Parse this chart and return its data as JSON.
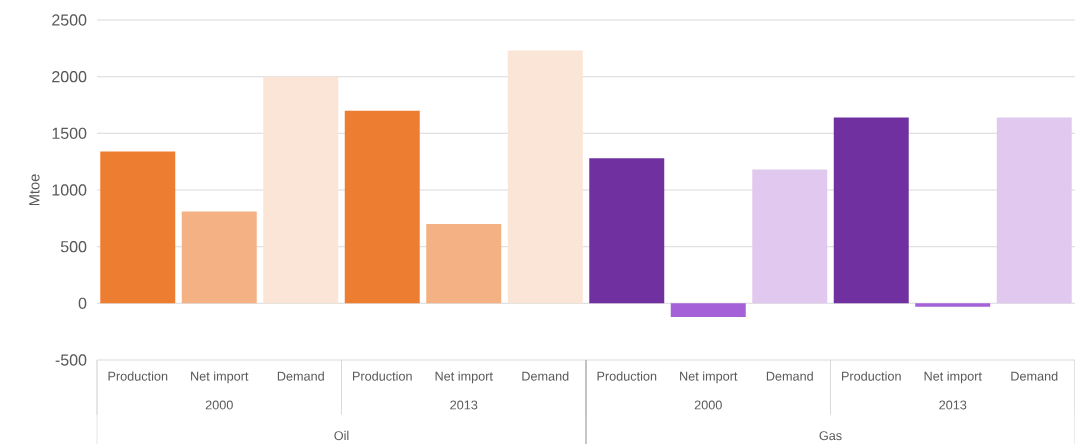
{
  "chart_data": {
    "type": "bar",
    "categories": [
      "Production",
      "Net import",
      "Demand",
      "Production",
      "Net import",
      "Demand",
      "Production",
      "Net import",
      "Demand",
      "Production",
      "Net import",
      "Demand"
    ],
    "values": [
      1340,
      810,
      2000,
      1700,
      700,
      2230,
      1280,
      -120,
      1180,
      1640,
      -30,
      1640
    ],
    "colors": [
      "#ed7d31",
      "#f4b183",
      "#fbe5d6",
      "#ed7d31",
      "#f4b183",
      "#fbe5d6",
      "#7030a0",
      "#a461d8",
      "#e0c8ee",
      "#7030a0",
      "#a461d8",
      "#e0c8ee"
    ],
    "ylabel": "Mtoe",
    "ylim": [
      -500,
      2500
    ],
    "yticks": [
      -500,
      0,
      500,
      1000,
      1500,
      2000,
      2500
    ],
    "grid": "y",
    "annotations": [
      "2000",
      "2013",
      "2000",
      "2013",
      "Oil",
      "Gas"
    ]
  }
}
